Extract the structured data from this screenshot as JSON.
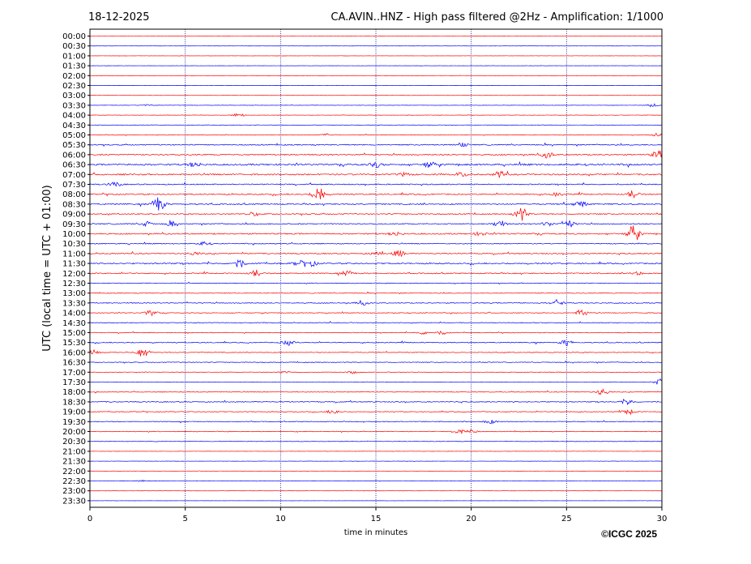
{
  "header": {
    "date": "18-12-2025",
    "title": "CA.AVIN..HNZ - High pass filtered @2Hz - Amplification: 1/1000"
  },
  "footer": {
    "copyright": "©ICGC 2025"
  },
  "chart_data": {
    "type": "line",
    "title": "CA.AVIN..HNZ - High pass filtered @2Hz - Amplification: 1/1000",
    "xlabel": "time in minutes",
    "ylabel": "UTC (local time = UTC + 01:00)",
    "xlim": [
      0,
      30
    ],
    "x_ticks": [
      "0",
      "5",
      "10",
      "15",
      "20",
      "25",
      "30"
    ],
    "grid": "vertical dotted lines every 5 minutes",
    "colors": {
      "red_trace": "#ff0000",
      "blue_trace": "#0000ff",
      "grid": "#000080"
    },
    "rows": [
      {
        "label": "00:00",
        "color": "red",
        "noise": 0.1,
        "events": []
      },
      {
        "label": "00:30",
        "color": "blue",
        "noise": 0.1,
        "events": []
      },
      {
        "label": "01:00",
        "color": "red",
        "noise": 0.1,
        "events": []
      },
      {
        "label": "01:30",
        "color": "blue",
        "noise": 0.12,
        "events": []
      },
      {
        "label": "02:00",
        "color": "red",
        "noise": 0.12,
        "events": []
      },
      {
        "label": "02:30",
        "color": "blue",
        "noise": 0.15,
        "events": []
      },
      {
        "label": "03:00",
        "color": "red",
        "noise": 0.12,
        "events": []
      },
      {
        "label": "03:30",
        "color": "blue",
        "noise": 0.15,
        "events": [
          [
            3.0,
            1.0
          ],
          [
            29.5,
            2.0
          ]
        ]
      },
      {
        "label": "04:00",
        "color": "red",
        "noise": 0.2,
        "events": [
          [
            7.8,
            2.5
          ]
        ]
      },
      {
        "label": "04:30",
        "color": "blue",
        "noise": 0.2,
        "events": []
      },
      {
        "label": "05:00",
        "color": "red",
        "noise": 0.35,
        "events": [
          [
            12.5,
            1.5
          ],
          [
            29.8,
            2.0
          ]
        ]
      },
      {
        "label": "05:30",
        "color": "blue",
        "noise": 0.6,
        "events": [
          [
            19.5,
            2.0
          ]
        ]
      },
      {
        "label": "06:00",
        "color": "red",
        "noise": 0.7,
        "events": [
          [
            24.0,
            4.0
          ],
          [
            29.8,
            5.0
          ]
        ]
      },
      {
        "label": "06:30",
        "color": "blue",
        "noise": 0.9,
        "events": [
          [
            5.5,
            3.0
          ],
          [
            15.0,
            3.0
          ],
          [
            17.8,
            3.5
          ]
        ]
      },
      {
        "label": "07:00",
        "color": "red",
        "noise": 0.8,
        "events": [
          [
            21.5,
            3.5
          ],
          [
            19.5,
            2.5
          ],
          [
            16.5,
            2.0
          ]
        ]
      },
      {
        "label": "07:30",
        "color": "blue",
        "noise": 0.6,
        "events": [
          [
            1.3,
            3.0
          ]
        ]
      },
      {
        "label": "08:00",
        "color": "red",
        "noise": 0.7,
        "events": [
          [
            12.0,
            11.0
          ],
          [
            28.5,
            4.5
          ],
          [
            24.5,
            2.0
          ]
        ]
      },
      {
        "label": "08:30",
        "color": "blue",
        "noise": 0.7,
        "events": [
          [
            3.6,
            9.0
          ],
          [
            25.7,
            4.0
          ]
        ]
      },
      {
        "label": "09:00",
        "color": "red",
        "noise": 0.6,
        "events": [
          [
            22.6,
            9.0
          ],
          [
            8.5,
            2.0
          ]
        ]
      },
      {
        "label": "09:30",
        "color": "blue",
        "noise": 0.6,
        "events": [
          [
            3.0,
            3.0
          ],
          [
            4.3,
            3.0
          ],
          [
            21.5,
            4.5
          ],
          [
            25.1,
            4.5
          ],
          [
            24.0,
            2.5
          ]
        ]
      },
      {
        "label": "10:00",
        "color": "red",
        "noise": 0.7,
        "events": [
          [
            28.5,
            10.0
          ],
          [
            16.0,
            2.5
          ],
          [
            20.5,
            2.5
          ]
        ]
      },
      {
        "label": "10:30",
        "color": "blue",
        "noise": 0.5,
        "events": [
          [
            6.0,
            2.0
          ]
        ]
      },
      {
        "label": "11:00",
        "color": "red",
        "noise": 0.6,
        "events": [
          [
            16.2,
            4.0
          ],
          [
            5.5,
            2.0
          ],
          [
            15.0,
            2.0
          ]
        ]
      },
      {
        "label": "11:30",
        "color": "blue",
        "noise": 0.7,
        "events": [
          [
            7.8,
            5.0
          ],
          [
            11.0,
            4.0
          ],
          [
            11.6,
            3.5
          ]
        ]
      },
      {
        "label": "12:00",
        "color": "red",
        "noise": 0.6,
        "events": [
          [
            8.7,
            4.0
          ],
          [
            13.5,
            3.0
          ],
          [
            28.6,
            3.0
          ]
        ]
      },
      {
        "label": "12:30",
        "color": "blue",
        "noise": 0.4,
        "events": []
      },
      {
        "label": "13:00",
        "color": "red",
        "noise": 0.4,
        "events": []
      },
      {
        "label": "13:30",
        "color": "blue",
        "noise": 0.5,
        "events": [
          [
            14.3,
            2.5
          ],
          [
            24.5,
            4.0
          ]
        ]
      },
      {
        "label": "14:00",
        "color": "red",
        "noise": 0.4,
        "events": [
          [
            3.2,
            4.0
          ],
          [
            25.8,
            4.5
          ]
        ]
      },
      {
        "label": "14:30",
        "color": "blue",
        "noise": 0.4,
        "events": []
      },
      {
        "label": "15:00",
        "color": "red",
        "noise": 0.4,
        "events": [
          [
            17.5,
            2.0
          ],
          [
            18.5,
            2.0
          ]
        ]
      },
      {
        "label": "15:30",
        "color": "blue",
        "noise": 0.5,
        "events": [
          [
            10.4,
            3.0
          ],
          [
            25.0,
            3.5
          ]
        ]
      },
      {
        "label": "16:00",
        "color": "red",
        "noise": 0.4,
        "events": [
          [
            2.8,
            5.5
          ],
          [
            0.2,
            3.0
          ]
        ]
      },
      {
        "label": "16:30",
        "color": "blue",
        "noise": 0.4,
        "events": []
      },
      {
        "label": "17:00",
        "color": "red",
        "noise": 0.3,
        "events": [
          [
            10.2,
            1.5
          ],
          [
            13.8,
            1.5
          ]
        ]
      },
      {
        "label": "17:30",
        "color": "blue",
        "noise": 0.3,
        "events": [
          [
            29.9,
            3.5
          ]
        ]
      },
      {
        "label": "18:00",
        "color": "red",
        "noise": 0.4,
        "events": [
          [
            26.9,
            4.0
          ]
        ]
      },
      {
        "label": "18:30",
        "color": "blue",
        "noise": 0.5,
        "events": [
          [
            28.2,
            3.5
          ]
        ]
      },
      {
        "label": "19:00",
        "color": "red",
        "noise": 0.4,
        "events": [
          [
            12.8,
            3.0
          ],
          [
            28.3,
            3.5
          ]
        ]
      },
      {
        "label": "19:30",
        "color": "blue",
        "noise": 0.4,
        "events": [
          [
            21.0,
            2.5
          ]
        ]
      },
      {
        "label": "20:00",
        "color": "red",
        "noise": 0.4,
        "events": [
          [
            19.3,
            3.0
          ],
          [
            20.0,
            2.5
          ]
        ]
      },
      {
        "label": "20:30",
        "color": "blue",
        "noise": 0.3,
        "events": []
      },
      {
        "label": "21:00",
        "color": "red",
        "noise": 0.15,
        "events": []
      },
      {
        "label": "21:30",
        "color": "blue",
        "noise": 0.15,
        "events": []
      },
      {
        "label": "22:00",
        "color": "red",
        "noise": 0.12,
        "events": []
      },
      {
        "label": "22:30",
        "color": "blue",
        "noise": 0.2,
        "events": [
          [
            2.8,
            1.0
          ]
        ]
      },
      {
        "label": "23:00",
        "color": "red",
        "noise": 0.1,
        "events": []
      },
      {
        "label": "23:30",
        "color": "blue",
        "noise": 0.1,
        "events": []
      }
    ]
  }
}
